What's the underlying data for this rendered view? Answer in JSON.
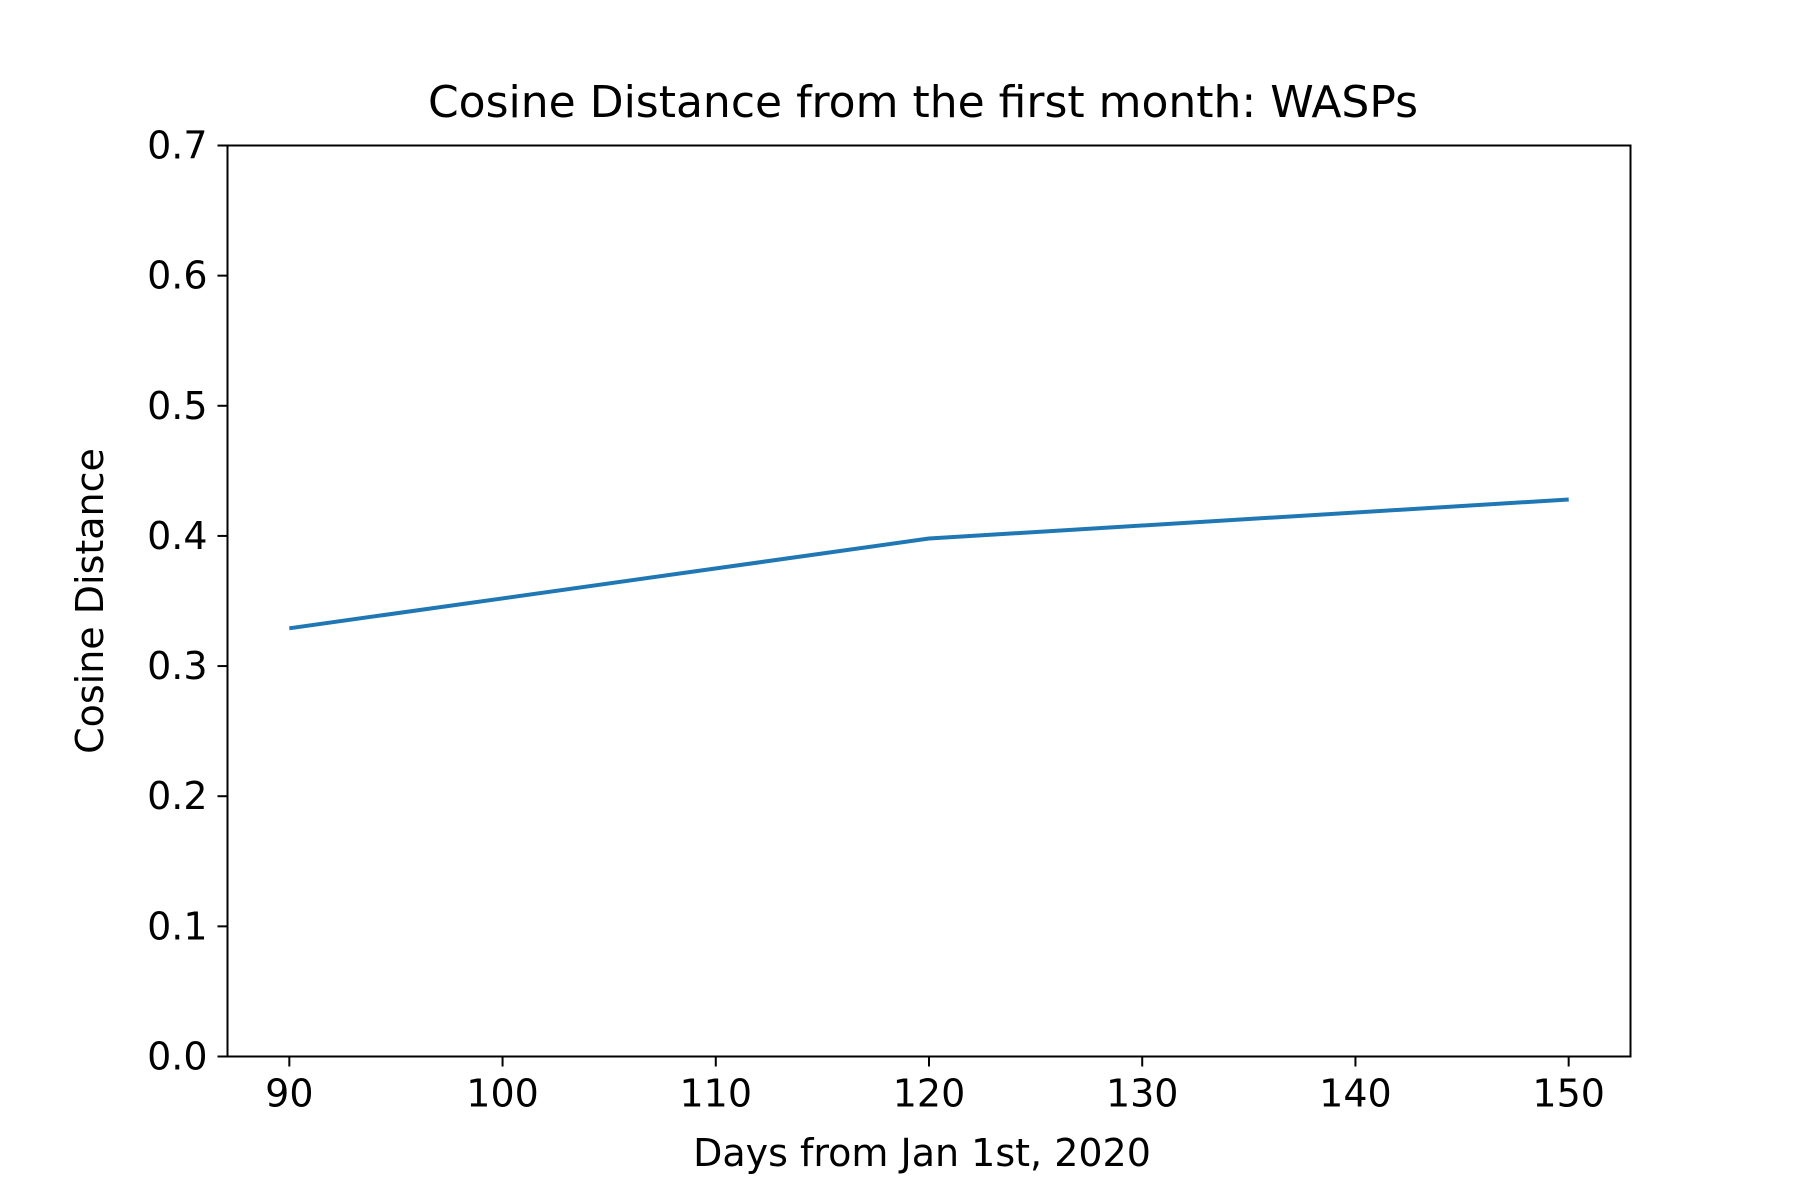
{
  "chart_data": {
    "type": "line",
    "title": "Cosine Distance from the first month: WASPs",
    "xlabel": "Days from Jan 1st, 2020",
    "ylabel": "Cosine Distance",
    "xlim": [
      87.1,
      152.9
    ],
    "ylim": [
      0,
      0.7
    ],
    "x_ticks": [
      90,
      100,
      110,
      120,
      130,
      140,
      150
    ],
    "x_tick_labels": [
      "90",
      "100",
      "110",
      "120",
      "130",
      "140",
      "150"
    ],
    "y_ticks": [
      0.0,
      0.1,
      0.2,
      0.3,
      0.4,
      0.5,
      0.6,
      0.7
    ],
    "y_tick_labels": [
      "0.0",
      "0.1",
      "0.2",
      "0.3",
      "0.4",
      "0.5",
      "0.6",
      "0.7"
    ],
    "grid": false,
    "series": [
      {
        "color": "#1f77b4",
        "x": [
          90,
          120,
          150
        ],
        "y": [
          0.329,
          0.398,
          0.428
        ]
      }
    ]
  }
}
